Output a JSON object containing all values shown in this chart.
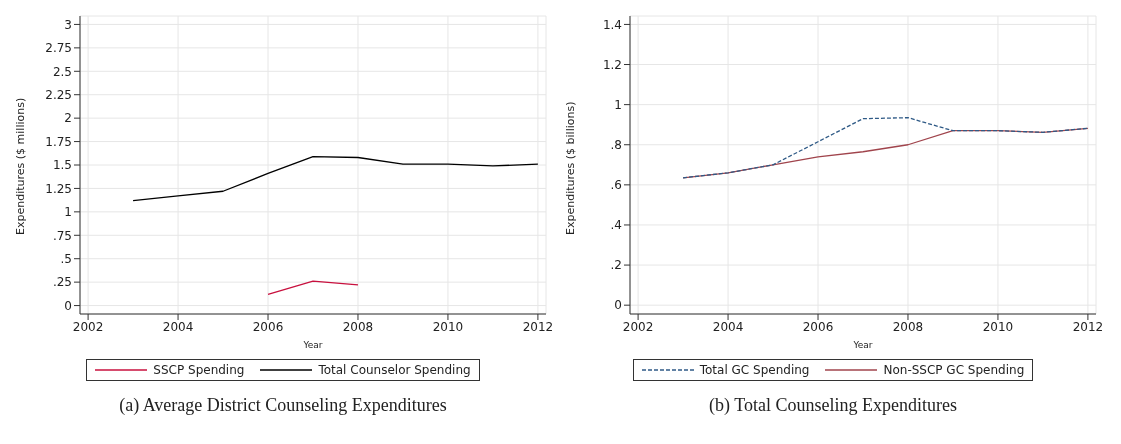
{
  "chart_data": [
    {
      "type": "line",
      "title": "(a) Average District Counseling Expenditures",
      "xlabel": "Year",
      "ylabel": "Expenditures ($ millions)",
      "x": [
        2003,
        2004,
        2005,
        2006,
        2007,
        2008,
        2009,
        2010,
        2011,
        2012
      ],
      "series": [
        {
          "name": "SSCP Spending",
          "color": "#c8103e",
          "values": [
            null,
            null,
            null,
            0.12,
            0.26,
            0.22,
            null,
            null,
            null,
            null
          ]
        },
        {
          "name": "Total Counselor Spending",
          "color": "#000000",
          "values": [
            1.12,
            1.17,
            1.22,
            1.41,
            1.59,
            1.58,
            1.51,
            1.51,
            1.49,
            1.51
          ]
        }
      ],
      "xlim": [
        2001.82,
        2012.18
      ],
      "xticks": [
        2002,
        2004,
        2006,
        2008,
        2010,
        2012
      ],
      "ylim": [
        -0.09,
        3.09
      ],
      "yticks": [
        0,
        {
          "value": 0.25,
          "label": ".25"
        },
        {
          "value": 0.5,
          "label": ".5"
        },
        {
          "value": 0.75,
          "label": ".75"
        },
        1,
        1.25,
        1.5,
        1.75,
        2,
        2.25,
        2.5,
        2.75,
        3
      ],
      "grid": true,
      "legend": "bottom",
      "line_style": "solid",
      "marker": "none"
    },
    {
      "type": "line",
      "title": "(b) Total Counseling Expenditures",
      "xlabel": "Year",
      "ylabel": "Expenditures ($ billions)",
      "x": [
        2003,
        2004,
        2005,
        2006,
        2007,
        2008,
        2009,
        2010,
        2011,
        2012
      ],
      "series": [
        {
          "name": "Total GC Spending",
          "color": "#2f5a86",
          "line_style": "dashed",
          "values": [
            0.635,
            0.66,
            0.7,
            0.815,
            0.93,
            0.935,
            0.87,
            0.87,
            0.862,
            0.882
          ]
        },
        {
          "name": "Non-SSCP GC Spending",
          "color": "#a0444c",
          "values": [
            0.635,
            0.66,
            0.7,
            0.74,
            0.765,
            0.8,
            0.87,
            0.87,
            0.862,
            0.882
          ]
        }
      ],
      "xlim": [
        2001.82,
        2012.18
      ],
      "xticks": [
        2002,
        2004,
        2006,
        2008,
        2010,
        2012
      ],
      "ylim": [
        -0.044,
        1.442
      ],
      "yticks": [
        0,
        {
          "value": 0.2,
          "label": ".2"
        },
        {
          "value": 0.4,
          "label": ".4"
        },
        {
          "value": 0.6,
          "label": ".6"
        },
        {
          "value": 0.8,
          "label": ".8"
        },
        1,
        1.2,
        1.4
      ],
      "grid": true,
      "legend": "bottom",
      "line_style": "solid",
      "marker": "none"
    }
  ]
}
